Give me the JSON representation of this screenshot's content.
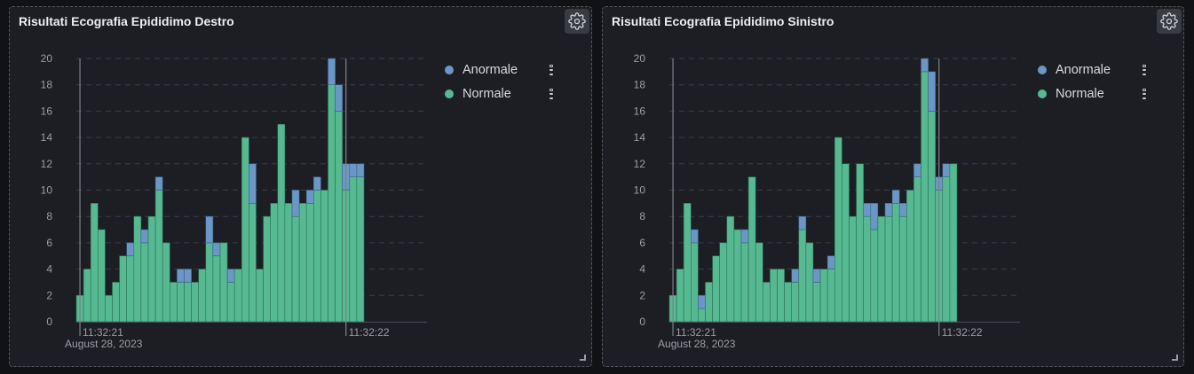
{
  "colors": {
    "anormale": "#6a97c6",
    "normale": "#56b991"
  },
  "chart_data": [
    {
      "type": "bar",
      "stacked": true,
      "title": "Risultati Ecografia Epididimo Destro",
      "ylim": [
        0,
        20
      ],
      "yticks": [
        0,
        2,
        4,
        6,
        8,
        10,
        12,
        14,
        16,
        18,
        20
      ],
      "x_tick_labels": [
        {
          "label": "11:32:21",
          "sublabel": "August 28, 2023"
        },
        {
          "label": "11:32:22",
          "sublabel": ""
        }
      ],
      "legend": "right",
      "grid": true,
      "series": [
        {
          "name": "Normale",
          "values": [
            2,
            4,
            9,
            7,
            2,
            3,
            5,
            5,
            8,
            6,
            8,
            10,
            6,
            3,
            3,
            3,
            3,
            4,
            6,
            5,
            6,
            3,
            4,
            14,
            9,
            4,
            8,
            9,
            15,
            9,
            8,
            9,
            9,
            10,
            10,
            18,
            16,
            10,
            11,
            11
          ]
        },
        {
          "name": "Anormale",
          "values": [
            0,
            0,
            0,
            0,
            0,
            0,
            0,
            1,
            0,
            1,
            0,
            1,
            0,
            0,
            1,
            1,
            0,
            0,
            2,
            1,
            0,
            1,
            0,
            0,
            3,
            0,
            0,
            0,
            0,
            0,
            2,
            0,
            1,
            1,
            0,
            2,
            2,
            2,
            1,
            1
          ]
        }
      ]
    },
    {
      "type": "bar",
      "stacked": true,
      "title": "Risultati Ecografia Epididimo Sinistro",
      "ylim": [
        0,
        20
      ],
      "yticks": [
        0,
        2,
        4,
        6,
        8,
        10,
        12,
        14,
        16,
        18,
        20
      ],
      "x_tick_labels": [
        {
          "label": "11:32:21",
          "sublabel": "August 28, 2023"
        },
        {
          "label": "11:32:22",
          "sublabel": ""
        }
      ],
      "legend": "right",
      "grid": true,
      "series": [
        {
          "name": "Normale",
          "values": [
            2,
            4,
            9,
            6,
            1,
            3,
            5,
            6,
            8,
            7,
            6,
            11,
            6,
            3,
            4,
            4,
            3,
            3,
            7,
            6,
            3,
            4,
            4,
            14,
            12,
            8,
            12,
            8,
            7,
            8,
            8,
            9,
            8,
            10,
            11,
            19,
            16,
            10,
            11,
            12
          ]
        },
        {
          "name": "Anormale",
          "values": [
            0,
            0,
            0,
            1,
            1,
            0,
            0,
            0,
            0,
            0,
            1,
            0,
            0,
            0,
            0,
            0,
            0,
            1,
            1,
            0,
            1,
            0,
            1,
            0,
            0,
            0,
            0,
            1,
            2,
            0,
            1,
            1,
            1,
            0,
            1,
            1,
            3,
            1,
            1,
            0
          ]
        }
      ]
    }
  ]
}
